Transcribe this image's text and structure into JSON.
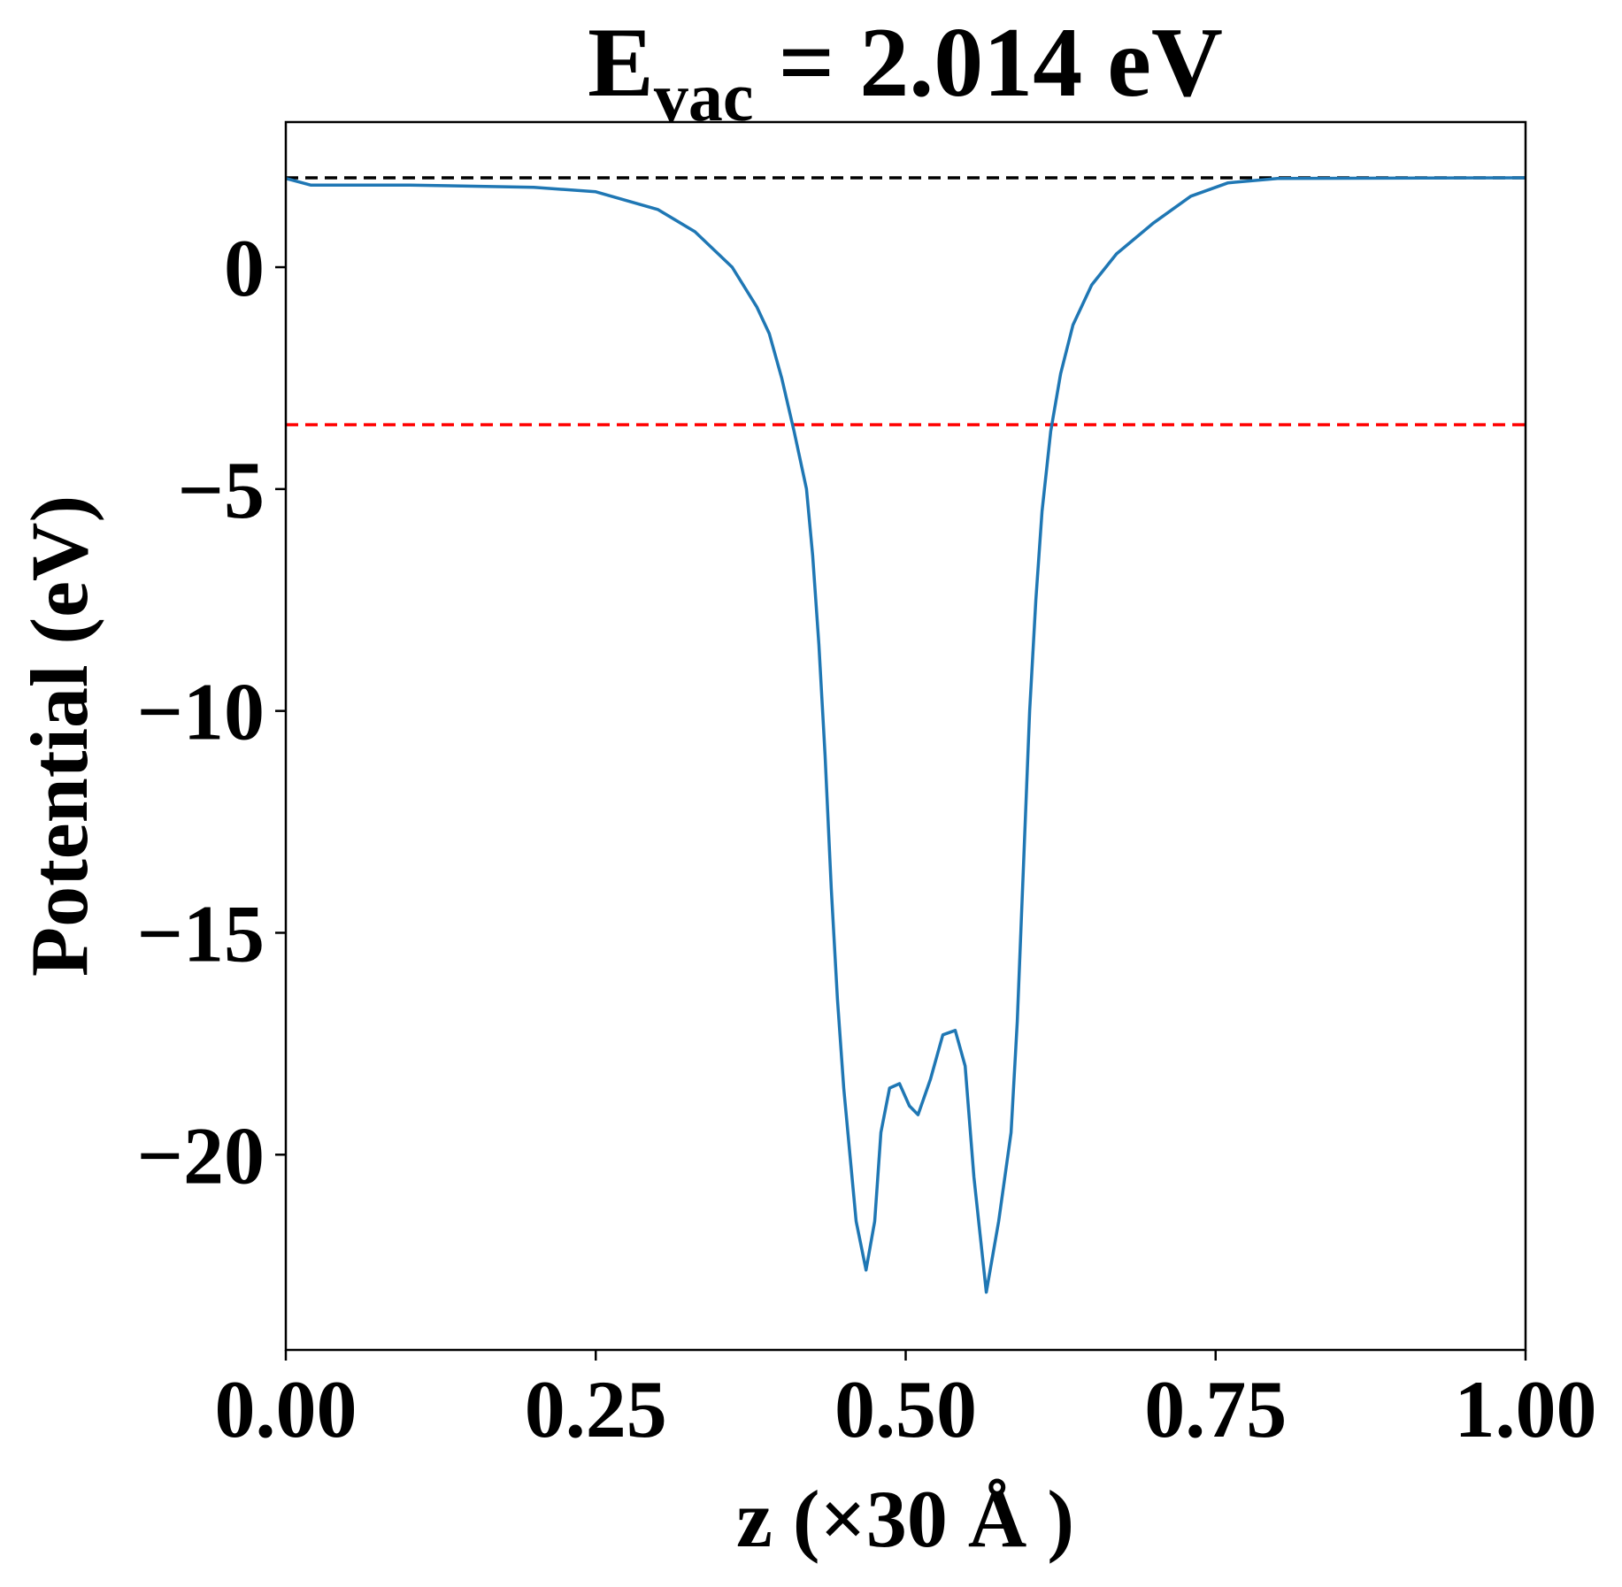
{
  "chart_data": {
    "type": "line",
    "title": {
      "main": "E",
      "subscript": "vac",
      "rest": " = 2.014 eV"
    },
    "x_label": "z (×30 Å )",
    "y_label": "Potential (eV)",
    "xlim": [
      0,
      1
    ],
    "ylim": [
      -24.4,
      3.27
    ],
    "xticks": [
      {
        "value": 0,
        "label": "0.00"
      },
      {
        "value": 0.25,
        "label": "0.25"
      },
      {
        "value": 0.5,
        "label": "0.50"
      },
      {
        "value": 0.75,
        "label": "0.75"
      },
      {
        "value": 1,
        "label": "1.00"
      }
    ],
    "yticks": [
      {
        "value": -20,
        "label": "−20"
      },
      {
        "value": -15,
        "label": "−15"
      },
      {
        "value": -10,
        "label": "−10"
      },
      {
        "value": -5,
        "label": "−5"
      },
      0
    ],
    "x": [
      0,
      0.02,
      0.1,
      0.2,
      0.25,
      0.3,
      0.33,
      0.36,
      0.38,
      0.39,
      0.4,
      0.41,
      0.42,
      0.425,
      0.43,
      0.435,
      0.44,
      0.445,
      0.45,
      0.455,
      0.46,
      0.468,
      0.475,
      0.48,
      0.487,
      0.495,
      0.503,
      0.51,
      0.52,
      0.53,
      0.54,
      0.548,
      0.555,
      0.565,
      0.575,
      0.585,
      0.59,
      0.595,
      0.6,
      0.605,
      0.61,
      0.617,
      0.625,
      0.635,
      0.65,
      0.67,
      0.7,
      0.73,
      0.76,
      0.8,
      1.0
    ],
    "series": [
      {
        "color": "#1f77b4",
        "values": [
          2.0,
          1.85,
          1.85,
          1.8,
          1.7,
          1.3,
          0.8,
          0.0,
          -0.9,
          -1.5,
          -2.5,
          -3.7,
          -5.0,
          -6.5,
          -8.5,
          -11,
          -14,
          -16.5,
          -18.5,
          -20,
          -21.5,
          -22.6,
          -21.5,
          -19.5,
          -18.5,
          -18.4,
          -18.9,
          -19.1,
          -18.3,
          -17.3,
          -17.2,
          -18.0,
          -20.5,
          -23.1,
          -21.5,
          -19.5,
          -17,
          -13.5,
          -10,
          -7.5,
          -5.5,
          -3.7,
          -2.4,
          -1.3,
          -0.4,
          0.3,
          1.0,
          1.6,
          1.9,
          2.0,
          2.014
        ]
      }
    ],
    "hlines": [
      {
        "value": 2.014,
        "color": "#000000"
      },
      {
        "value": -3.55,
        "color": "#ff0000"
      }
    ]
  }
}
